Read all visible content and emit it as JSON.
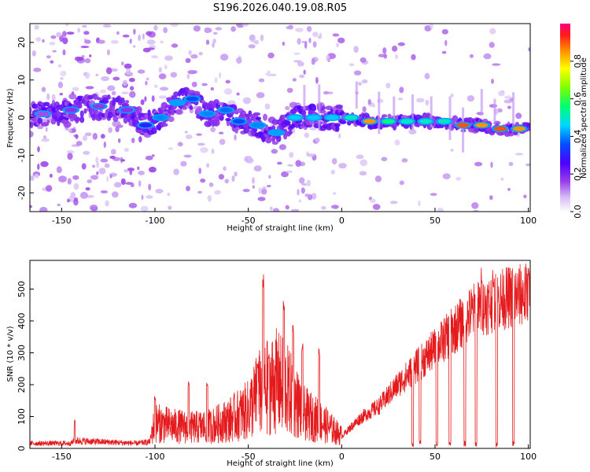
{
  "figure_title": "S196.2026.040.19.08.R05",
  "colors": {
    "snr_line": "#e41a1c",
    "axis": "#000000",
    "band_low": "#7a1fd6",
    "band_high": "#e41a1c"
  },
  "chart_data": [
    {
      "type": "heatmap",
      "name": "spectrogram",
      "xlabel": "Height of straight line (km)",
      "ylabel": "Frequency (Hz)",
      "xlim": [
        -167,
        101
      ],
      "ylim": [
        -25,
        25
      ],
      "xticks": [
        -150,
        -100,
        -50,
        0,
        50,
        100
      ],
      "yticks": [
        -20,
        -10,
        0,
        10,
        20
      ],
      "colorbar": {
        "label": "Normalized spectral amplitude",
        "range": [
          0,
          1
        ],
        "ticks": [
          0.0,
          0.2,
          0.4,
          0.6,
          0.8
        ]
      },
      "ridge": [
        {
          "x": -160,
          "f": 1,
          "a": 0.15
        },
        {
          "x": -145,
          "f": 2,
          "a": 0.18
        },
        {
          "x": -130,
          "f": 3,
          "a": 0.17
        },
        {
          "x": -115,
          "f": 2,
          "a": 0.18
        },
        {
          "x": -105,
          "f": -2,
          "a": 0.3
        },
        {
          "x": -97,
          "f": 0,
          "a": 0.4
        },
        {
          "x": -88,
          "f": 4,
          "a": 0.42
        },
        {
          "x": -80,
          "f": 5,
          "a": 0.35
        },
        {
          "x": -72,
          "f": 1,
          "a": 0.4
        },
        {
          "x": -62,
          "f": 2,
          "a": 0.38
        },
        {
          "x": -55,
          "f": -1,
          "a": 0.35
        },
        {
          "x": -45,
          "f": -2,
          "a": 0.4
        },
        {
          "x": -35,
          "f": -4,
          "a": 0.42
        },
        {
          "x": -25,
          "f": 0,
          "a": 0.45
        },
        {
          "x": -15,
          "f": 0,
          "a": 0.45
        },
        {
          "x": -5,
          "f": 0,
          "a": 0.45
        },
        {
          "x": 5,
          "f": 0,
          "a": 0.5
        },
        {
          "x": 15,
          "f": -1,
          "a": 0.85
        },
        {
          "x": 25,
          "f": -1,
          "a": 0.55
        },
        {
          "x": 35,
          "f": -1,
          "a": 0.5
        },
        {
          "x": 45,
          "f": -1,
          "a": 0.5
        },
        {
          "x": 55,
          "f": -1,
          "a": 0.5
        },
        {
          "x": 65,
          "f": -2,
          "a": 0.9
        },
        {
          "x": 75,
          "f": -2,
          "a": 0.85
        },
        {
          "x": 85,
          "f": -3,
          "a": 0.9
        },
        {
          "x": 95,
          "f": -3,
          "a": 0.85
        }
      ]
    },
    {
      "type": "line",
      "name": "snr",
      "xlabel": "Height of straight line (km)",
      "ylabel": "SNR (10 * v/v)",
      "xlim": [
        -167,
        101
      ],
      "ylim": [
        0,
        590
      ],
      "xticks": [
        -150,
        -100,
        -50,
        0,
        50,
        100
      ],
      "yticks": [
        0,
        100,
        200,
        300,
        400,
        500
      ],
      "envelope": [
        {
          "x": -167,
          "y": 20
        },
        {
          "x": -145,
          "y": 20
        },
        {
          "x": -143,
          "y": 30
        },
        {
          "x": -110,
          "y": 20
        },
        {
          "x": -103,
          "y": 25
        },
        {
          "x": -100,
          "y": 80
        },
        {
          "x": -90,
          "y": 70
        },
        {
          "x": -80,
          "y": 65
        },
        {
          "x": -70,
          "y": 70
        },
        {
          "x": -60,
          "y": 90
        },
        {
          "x": -50,
          "y": 120
        },
        {
          "x": -45,
          "y": 170
        },
        {
          "x": -40,
          "y": 190
        },
        {
          "x": -35,
          "y": 210
        },
        {
          "x": -30,
          "y": 190
        },
        {
          "x": -25,
          "y": 150
        },
        {
          "x": -20,
          "y": 110
        },
        {
          "x": -10,
          "y": 80
        },
        {
          "x": 0,
          "y": 40
        },
        {
          "x": 10,
          "y": 100
        },
        {
          "x": 20,
          "y": 140
        },
        {
          "x": 30,
          "y": 210
        },
        {
          "x": 40,
          "y": 270
        },
        {
          "x": 50,
          "y": 330
        },
        {
          "x": 60,
          "y": 390
        },
        {
          "x": 70,
          "y": 450
        },
        {
          "x": 80,
          "y": 480
        },
        {
          "x": 90,
          "y": 500
        },
        {
          "x": 101,
          "y": 510
        }
      ],
      "peaks": [
        {
          "x": -143,
          "y": 90
        },
        {
          "x": -100,
          "y": 165
        },
        {
          "x": -82,
          "y": 210
        },
        {
          "x": -72,
          "y": 210
        },
        {
          "x": -45,
          "y": 270
        },
        {
          "x": -42,
          "y": 550
        },
        {
          "x": -39,
          "y": 300
        },
        {
          "x": -31,
          "y": 470
        },
        {
          "x": -26,
          "y": 400
        },
        {
          "x": -21,
          "y": 330
        },
        {
          "x": -12,
          "y": 320
        },
        {
          "x": 75,
          "y": 575
        },
        {
          "x": 81,
          "y": 560
        },
        {
          "x": 100,
          "y": 570
        }
      ],
      "dropouts": [
        38,
        42,
        51,
        58,
        66,
        72,
        83,
        92
      ]
    }
  ]
}
